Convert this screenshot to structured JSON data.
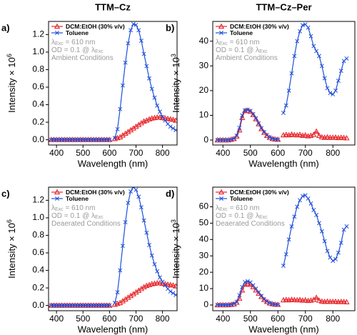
{
  "chart_data": [
    {
      "type": "line",
      "title": "TTM–Cz",
      "panel_label": "a)",
      "xlabel": "Wavelength (nm)",
      "ylabel": [
        "Intensity × 10",
        "6"
      ],
      "annotations": [
        [
          "λ",
          "Exc",
          " = 610 nm"
        ],
        [
          "OD = 0.1 @ λ",
          "Exc"
        ],
        [
          "Ambient Conditions"
        ]
      ],
      "legend": "upper left",
      "xlim": [
        370,
        855
      ],
      "xticks": [
        400,
        500,
        600,
        700,
        800
      ],
      "ylim": [
        -0.06,
        1.35
      ],
      "yticks": [
        {
          "value": 0,
          "label": "0.0"
        },
        0.2,
        0.4,
        0.6,
        0.8,
        {
          "value": 1,
          "label": "1.0"
        },
        1.2
      ],
      "x": [
        380,
        390,
        400,
        410,
        420,
        430,
        440,
        450,
        460,
        470,
        480,
        490,
        500,
        510,
        520,
        530,
        540,
        550,
        560,
        570,
        580,
        590,
        600,
        610,
        620,
        630,
        640,
        650,
        660,
        670,
        680,
        690,
        700,
        710,
        720,
        730,
        740,
        750,
        760,
        770,
        780,
        790,
        800,
        810,
        820,
        830,
        840,
        850
      ],
      "series": [
        {
          "name": "DCM:EtOH (30% v/v)",
          "color": "#e8262b",
          "marker": "triangle",
          "values": [
            0,
            0,
            0,
            0,
            0,
            0,
            0,
            0,
            0,
            0,
            0,
            0,
            0,
            0,
            0,
            0,
            0,
            0,
            0,
            0,
            0,
            0,
            0,
            null,
            0.01,
            0.02,
            0.03,
            0.05,
            0.07,
            0.09,
            0.11,
            0.13,
            0.15,
            0.17,
            0.19,
            0.21,
            0.22,
            0.235,
            0.245,
            0.25,
            0.255,
            0.255,
            0.25,
            0.245,
            0.24,
            0.235,
            0.23,
            0.22
          ]
        },
        {
          "name": "Toluene",
          "color": "#1f4fd8",
          "marker": "x",
          "values": [
            0,
            0,
            0,
            0,
            0,
            0,
            0,
            0,
            0,
            0,
            0,
            0,
            0,
            0,
            0,
            0,
            0,
            0,
            0,
            0,
            0,
            0,
            0,
            null,
            0.02,
            0.12,
            0.35,
            0.62,
            0.88,
            1.1,
            1.25,
            1.32,
            1.31,
            1.25,
            1.13,
            0.98,
            0.84,
            0.7,
            0.58,
            0.48,
            0.39,
            0.32,
            0.26,
            0.22,
            0.18,
            0.15,
            0.13,
            0.11
          ]
        }
      ]
    },
    {
      "type": "line",
      "title": "TTM–Cz–Per",
      "panel_label": "b)",
      "xlabel": "Wavelength (nm)",
      "ylabel": [
        "Intensity × 10",
        "3"
      ],
      "annotations": [
        [
          "λ",
          "Exc",
          " = 610 nm"
        ],
        [
          "OD = 0.1 @ λ",
          "Exc"
        ],
        [
          "Ambient Conditions"
        ]
      ],
      "legend": "upper left",
      "xlim": [
        363,
        880
      ],
      "xticks": [
        400,
        500,
        600,
        700,
        800
      ],
      "ylim": [
        -2,
        48
      ],
      "yticks": [
        0,
        10,
        20,
        30,
        40
      ],
      "x": [
        380,
        390,
        400,
        410,
        420,
        430,
        440,
        450,
        460,
        470,
        480,
        490,
        500,
        510,
        520,
        530,
        540,
        550,
        560,
        570,
        580,
        590,
        600,
        610,
        620,
        630,
        640,
        650,
        660,
        670,
        680,
        690,
        700,
        710,
        720,
        730,
        740,
        750,
        760,
        770,
        780,
        790,
        800,
        810,
        820,
        830,
        840,
        850
      ],
      "series": [
        {
          "name": "DCM:EtOH (30% v/v)",
          "color": "#e8262b",
          "marker": "triangle",
          "values": [
            0,
            0,
            0,
            0,
            0,
            0.2,
            0.5,
            1.5,
            4,
            9,
            11.8,
            12,
            11.5,
            10.2,
            8.5,
            6.5,
            4.5,
            3,
            1.8,
            1,
            0.5,
            0.3,
            0.2,
            null,
            2,
            2.2,
            2,
            2.3,
            2.1,
            2,
            2.2,
            1.8,
            2,
            1.6,
            1.8,
            2.2,
            3.5,
            1.8,
            1.2,
            1,
            1.2,
            1,
            1,
            1.1,
            0.9,
            1,
            0.9,
            0.8
          ]
        },
        {
          "name": "Toluene",
          "color": "#1f4fd8",
          "marker": "x",
          "values": [
            0,
            0,
            0,
            0,
            0,
            0.2,
            0.6,
            1.8,
            5,
            10,
            12,
            12.3,
            11.8,
            10.5,
            8.8,
            6.8,
            4.8,
            3.2,
            2,
            1.1,
            0.6,
            0.3,
            0.2,
            null,
            11,
            14,
            20,
            27,
            34,
            40,
            44,
            46.5,
            46.8,
            45.5,
            42,
            38,
            36,
            34,
            30,
            25,
            21,
            19,
            18.5,
            20,
            24,
            28,
            32,
            33
          ]
        }
      ]
    },
    {
      "type": "line",
      "panel_label": "c)",
      "xlabel": "Wavelength (nm)",
      "ylabel": [
        "Intensity × 10",
        "6"
      ],
      "annotations": [
        [
          "λ",
          "Exc",
          " = 610 nm"
        ],
        [
          "OD = 0.1 @ λ",
          "Exc"
        ],
        [
          "Deaerated Conditions"
        ]
      ],
      "legend": "upper left",
      "xlim": [
        370,
        855
      ],
      "xticks": [
        400,
        500,
        600,
        700,
        800
      ],
      "ylim": [
        -0.06,
        1.35
      ],
      "yticks": [
        {
          "value": 0,
          "label": "0.0"
        },
        0.2,
        0.4,
        0.6,
        0.8,
        {
          "value": 1,
          "label": "1.0"
        },
        1.2
      ],
      "x": [
        380,
        390,
        400,
        410,
        420,
        430,
        440,
        450,
        460,
        470,
        480,
        490,
        500,
        510,
        520,
        530,
        540,
        550,
        560,
        570,
        580,
        590,
        600,
        610,
        620,
        630,
        640,
        650,
        660,
        670,
        680,
        690,
        700,
        710,
        720,
        730,
        740,
        750,
        760,
        770,
        780,
        790,
        800,
        810,
        820,
        830,
        840,
        850
      ],
      "series": [
        {
          "name": "DCM:EtOH (30% v/v)",
          "color": "#e8262b",
          "marker": "triangle",
          "values": [
            0,
            0,
            0,
            0,
            0,
            0,
            0,
            0,
            0,
            0,
            0,
            0,
            0,
            0,
            0,
            0,
            0,
            0,
            0,
            0,
            0,
            0,
            0,
            null,
            0.01,
            0.02,
            0.03,
            0.05,
            0.07,
            0.09,
            0.11,
            0.13,
            0.15,
            0.17,
            0.19,
            0.21,
            0.225,
            0.235,
            0.245,
            0.25,
            0.255,
            0.255,
            0.25,
            0.245,
            0.24,
            0.235,
            0.23,
            0.22
          ]
        },
        {
          "name": "Toluene",
          "color": "#1f4fd8",
          "marker": "x",
          "values": [
            0,
            0,
            0,
            0,
            0,
            0,
            0,
            0,
            0,
            0,
            0,
            0,
            0,
            0,
            0,
            0,
            0,
            0,
            0,
            0,
            0,
            0,
            0,
            null,
            0.03,
            0.15,
            0.4,
            0.68,
            0.95,
            1.17,
            1.3,
            1.35,
            1.32,
            1.24,
            1.12,
            0.97,
            0.83,
            0.69,
            0.57,
            0.47,
            0.39,
            0.32,
            0.27,
            0.23,
            0.19,
            0.16,
            0.14,
            0.12
          ]
        }
      ]
    },
    {
      "type": "line",
      "panel_label": "d)",
      "xlabel": "Wavelength (nm)",
      "ylabel": [
        "Intensity × 10",
        "3"
      ],
      "annotations": [
        [
          "λ",
          "Exc",
          " = 610 nm"
        ],
        [
          "OD = 0.1 @ λ",
          "Exc"
        ],
        [
          "Deaerated Conditions"
        ]
      ],
      "legend": "upper left",
      "xlim": [
        363,
        880
      ],
      "xticks": [
        400,
        500,
        600,
        700,
        800
      ],
      "ylim": [
        -3.5,
        72
      ],
      "yticks": [
        0,
        10,
        20,
        30,
        40,
        50,
        60
      ],
      "x": [
        380,
        390,
        400,
        410,
        420,
        430,
        440,
        450,
        460,
        470,
        480,
        490,
        500,
        510,
        520,
        530,
        540,
        550,
        560,
        570,
        580,
        590,
        600,
        610,
        620,
        630,
        640,
        650,
        660,
        670,
        680,
        690,
        700,
        710,
        720,
        730,
        740,
        750,
        760,
        770,
        780,
        790,
        800,
        810,
        820,
        830,
        840,
        850
      ],
      "series": [
        {
          "name": "DCM:EtOH (30% v/v)",
          "color": "#e8262b",
          "marker": "triangle",
          "values": [
            0,
            0,
            0,
            0,
            0,
            0.2,
            0.5,
            1.5,
            4,
            9,
            12.5,
            13,
            12.5,
            11,
            9,
            7,
            5,
            3.2,
            2,
            1.1,
            0.6,
            0.3,
            0.2,
            null,
            3,
            3.2,
            3,
            3.3,
            3.1,
            3,
            3.2,
            2.8,
            3,
            2.6,
            2.8,
            3.2,
            4.5,
            2.8,
            2.2,
            2,
            2.2,
            2,
            2,
            2.1,
            1.9,
            2,
            1.9,
            1.8
          ]
        },
        {
          "name": "Toluene",
          "color": "#1f4fd8",
          "marker": "x",
          "values": [
            0,
            0,
            0,
            0,
            0,
            0.3,
            0.8,
            2,
            6,
            11,
            14,
            14.5,
            13.8,
            12,
            10,
            7.8,
            5.5,
            3.5,
            2.2,
            1.2,
            0.6,
            0.3,
            0.2,
            null,
            24,
            31,
            40,
            48,
            54,
            60,
            64,
            66.5,
            67,
            65,
            62,
            58,
            55,
            50,
            45,
            39,
            33,
            29,
            27,
            28,
            32,
            38,
            46,
            48
          ]
        }
      ]
    }
  ]
}
